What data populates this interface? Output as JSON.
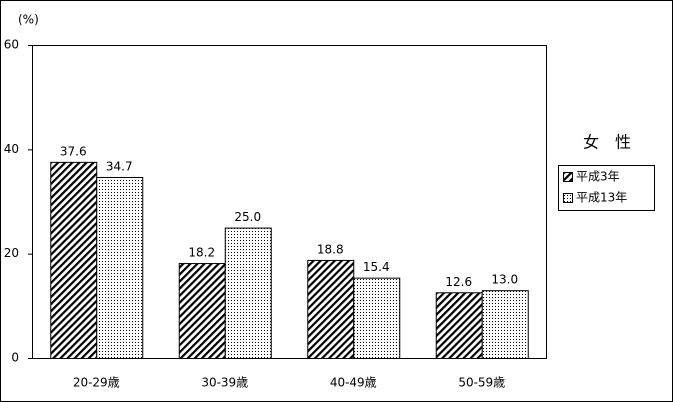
{
  "chart_data": {
    "type": "bar",
    "y_label": "(%)",
    "legend_title": "女　性",
    "categories": [
      "20-29歳",
      "30-39歳",
      "40-49歳",
      "50-59歳"
    ],
    "series": [
      {
        "name": "平成3年",
        "color": "#000000",
        "pattern": "hatch",
        "values": [
          37.6,
          18.2,
          18.8,
          12.6
        ],
        "value_labels": [
          "37.6",
          "18.2",
          "18.8",
          "12.6"
        ]
      },
      {
        "name": "平成13年",
        "color": "#000000",
        "pattern": "dots",
        "values": [
          34.7,
          25,
          15.4,
          13
        ],
        "value_labels": [
          "34.7",
          "25.0",
          "15.4",
          "13.0"
        ]
      }
    ],
    "ylim": [
      0,
      60
    ],
    "yticks": [
      0,
      20,
      40,
      60
    ],
    "grid": false
  }
}
